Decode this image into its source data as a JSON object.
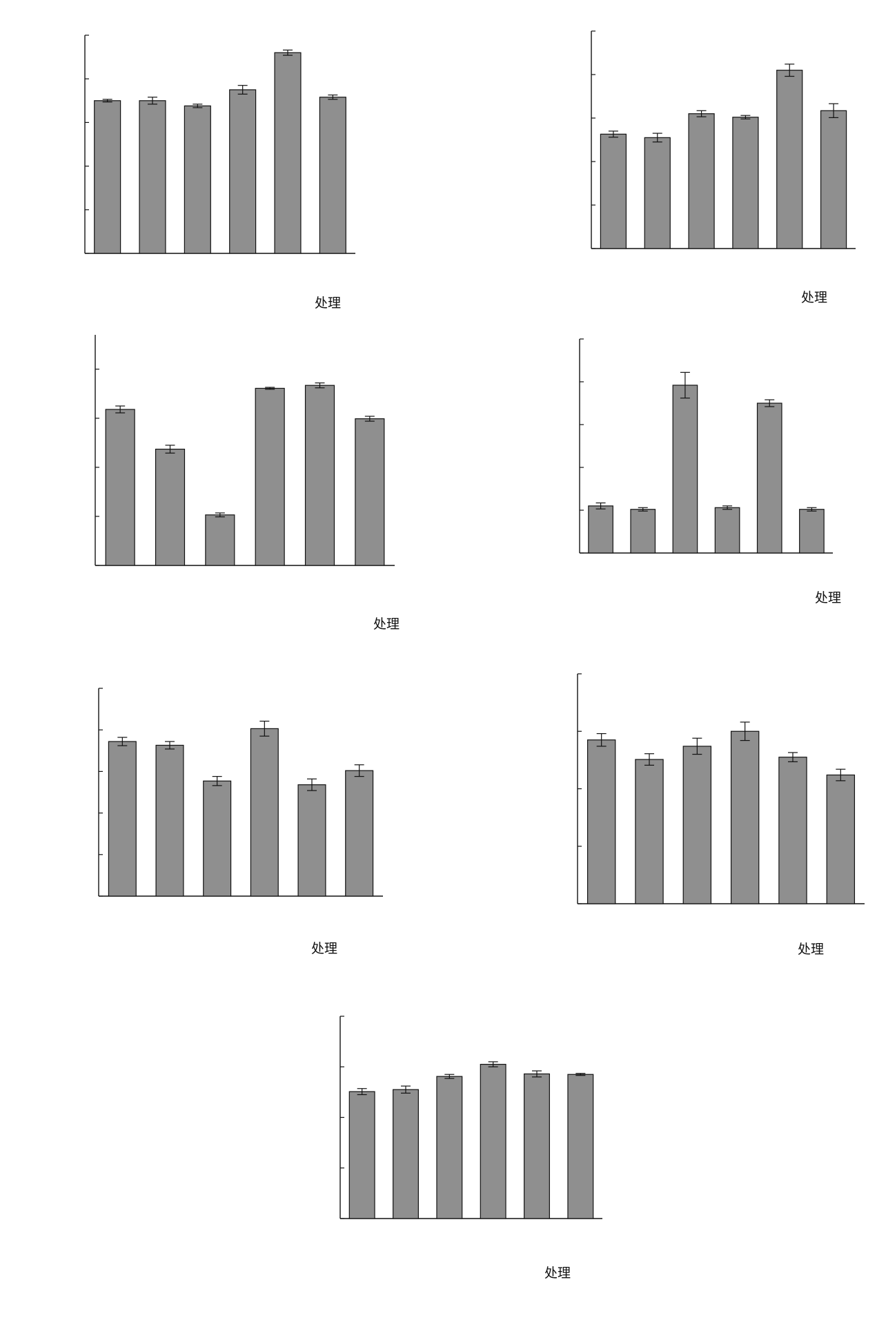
{
  "figure": {
    "xlabel": "处理",
    "colors": {
      "bar": "#8f8f8f",
      "bar_stroke": "#111111",
      "axis": "#111111",
      "background": "#ffffff"
    }
  },
  "chart_data": [
    {
      "type": "bar",
      "categories": [
        "",
        "",
        "",
        "",
        "",
        ""
      ],
      "values": [
        3.5,
        3.5,
        3.38,
        3.75,
        4.6,
        3.58
      ],
      "errors": [
        0.03,
        0.08,
        0.04,
        0.1,
        0.06,
        0.05
      ],
      "ylim": [
        0,
        5
      ],
      "yticks": [
        0,
        1,
        2,
        3,
        4,
        5
      ],
      "xlabel": "处理",
      "ylabel": "",
      "title": "",
      "legend": "none",
      "grid": false
    },
    {
      "type": "bar",
      "categories": [
        "",
        "",
        "",
        "",
        "",
        ""
      ],
      "values": [
        2.63,
        2.55,
        3.1,
        3.02,
        4.1,
        3.17
      ],
      "errors": [
        0.07,
        0.1,
        0.07,
        0.04,
        0.14,
        0.16
      ],
      "ylim": [
        0,
        5
      ],
      "yticks": [
        0,
        1,
        2,
        3,
        4,
        5
      ],
      "xlabel": "处理",
      "ylabel": "",
      "title": "",
      "legend": "none",
      "grid": false
    },
    {
      "type": "bar",
      "categories": [
        "",
        "",
        "",
        "",
        "",
        ""
      ],
      "values": [
        3.18,
        2.37,
        1.03,
        3.61,
        3.67,
        2.99
      ],
      "errors": [
        0.07,
        0.08,
        0.04,
        0.02,
        0.05,
        0.05
      ],
      "ylim": [
        0,
        4.7
      ],
      "yticks": [
        0,
        1,
        2,
        3,
        4
      ],
      "xlabel": "处理",
      "ylabel": "",
      "title": "",
      "legend": "none",
      "grid": false
    },
    {
      "type": "bar",
      "categories": [
        "",
        "",
        "",
        "",
        "",
        ""
      ],
      "values": [
        1.1,
        1.02,
        3.92,
        1.06,
        3.5,
        1.02
      ],
      "errors": [
        0.07,
        0.04,
        0.3,
        0.04,
        0.08,
        0.04
      ],
      "ylim": [
        0,
        5
      ],
      "yticks": [
        0,
        1,
        2,
        3,
        4,
        5
      ],
      "xlabel": "处理",
      "ylabel": "",
      "title": "",
      "legend": "none",
      "grid": false
    },
    {
      "type": "bar",
      "categories": [
        "",
        "",
        "",
        "",
        "",
        ""
      ],
      "values": [
        3.72,
        3.63,
        2.77,
        4.03,
        2.68,
        3.02
      ],
      "errors": [
        0.1,
        0.09,
        0.11,
        0.18,
        0.14,
        0.14
      ],
      "ylim": [
        0,
        5
      ],
      "yticks": [
        0,
        1,
        2,
        3,
        4,
        5
      ],
      "xlabel": "处理",
      "ylabel": "",
      "title": "",
      "legend": "none",
      "grid": false
    },
    {
      "type": "bar",
      "categories": [
        "",
        "",
        "",
        "",
        "",
        ""
      ],
      "values": [
        2.85,
        2.51,
        2.74,
        3.0,
        2.55,
        2.24
      ],
      "errors": [
        0.11,
        0.1,
        0.14,
        0.16,
        0.08,
        0.1
      ],
      "ylim": [
        0,
        4
      ],
      "yticks": [
        0,
        1,
        2,
        3,
        4
      ],
      "xlabel": "处理",
      "ylabel": "",
      "title": "",
      "legend": "none",
      "grid": false
    },
    {
      "type": "bar",
      "categories": [
        "",
        "",
        "",
        "",
        "",
        ""
      ],
      "values": [
        2.51,
        2.55,
        2.81,
        3.05,
        2.86,
        2.85
      ],
      "errors": [
        0.06,
        0.07,
        0.04,
        0.05,
        0.06,
        0.02
      ],
      "ylim": [
        0,
        4
      ],
      "yticks": [
        0,
        1,
        2,
        3,
        4
      ],
      "xlabel": "处理",
      "ylabel": "",
      "title": "",
      "legend": "none",
      "grid": false
    }
  ]
}
